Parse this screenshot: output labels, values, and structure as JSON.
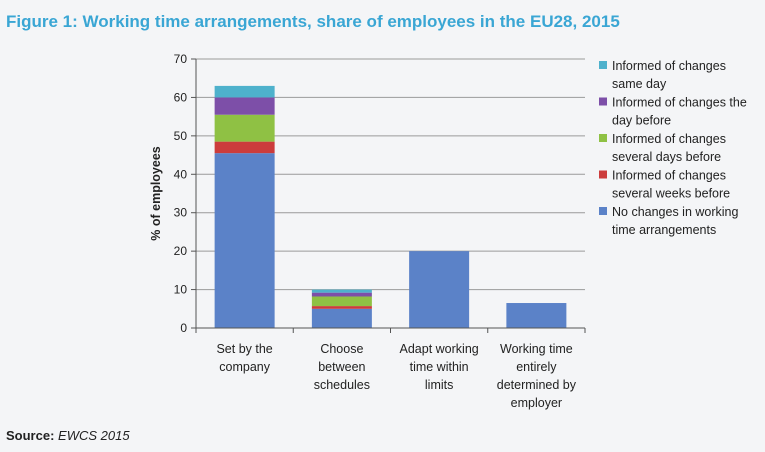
{
  "title": "Figure 1: Working time arrangements, share of employees in the EU28, 2015",
  "source": {
    "label": "Source:",
    "value": "EWCS 2015"
  },
  "chart_data": {
    "type": "bar",
    "stacked": true,
    "ylabel": "% of employees",
    "xlabel": "",
    "ylim": [
      0,
      70
    ],
    "yticks": [
      0,
      10,
      20,
      30,
      40,
      50,
      60,
      70
    ],
    "grid": true,
    "legend_position": "right",
    "categories": [
      [
        "Set by the",
        "company"
      ],
      [
        "Choose",
        "between",
        "schedules"
      ],
      [
        "Adapt working",
        "time within",
        "limits"
      ],
      [
        "Working time",
        "entirely",
        "determined by",
        "employer"
      ]
    ],
    "series": [
      {
        "name": [
          "No changes in working",
          "time arrangements"
        ],
        "color": "#5b82c8",
        "values": [
          45.5,
          5.0,
          20.0,
          6.5
        ]
      },
      {
        "name": [
          "Informed of changes",
          "several weeks before"
        ],
        "color": "#cc3c3c",
        "values": [
          3.0,
          0.7,
          0,
          0
        ]
      },
      {
        "name": [
          "Informed of changes",
          "several days before"
        ],
        "color": "#8fc144",
        "values": [
          7.0,
          2.5,
          0,
          0
        ]
      },
      {
        "name": [
          "Informed of changes the",
          "day before"
        ],
        "color": "#7d4fa8",
        "values": [
          4.5,
          1.0,
          0,
          0
        ]
      },
      {
        "name": [
          "Informed of changes",
          "same day"
        ],
        "color": "#4eb1cc",
        "values": [
          3.0,
          0.8,
          0,
          0
        ]
      }
    ]
  }
}
